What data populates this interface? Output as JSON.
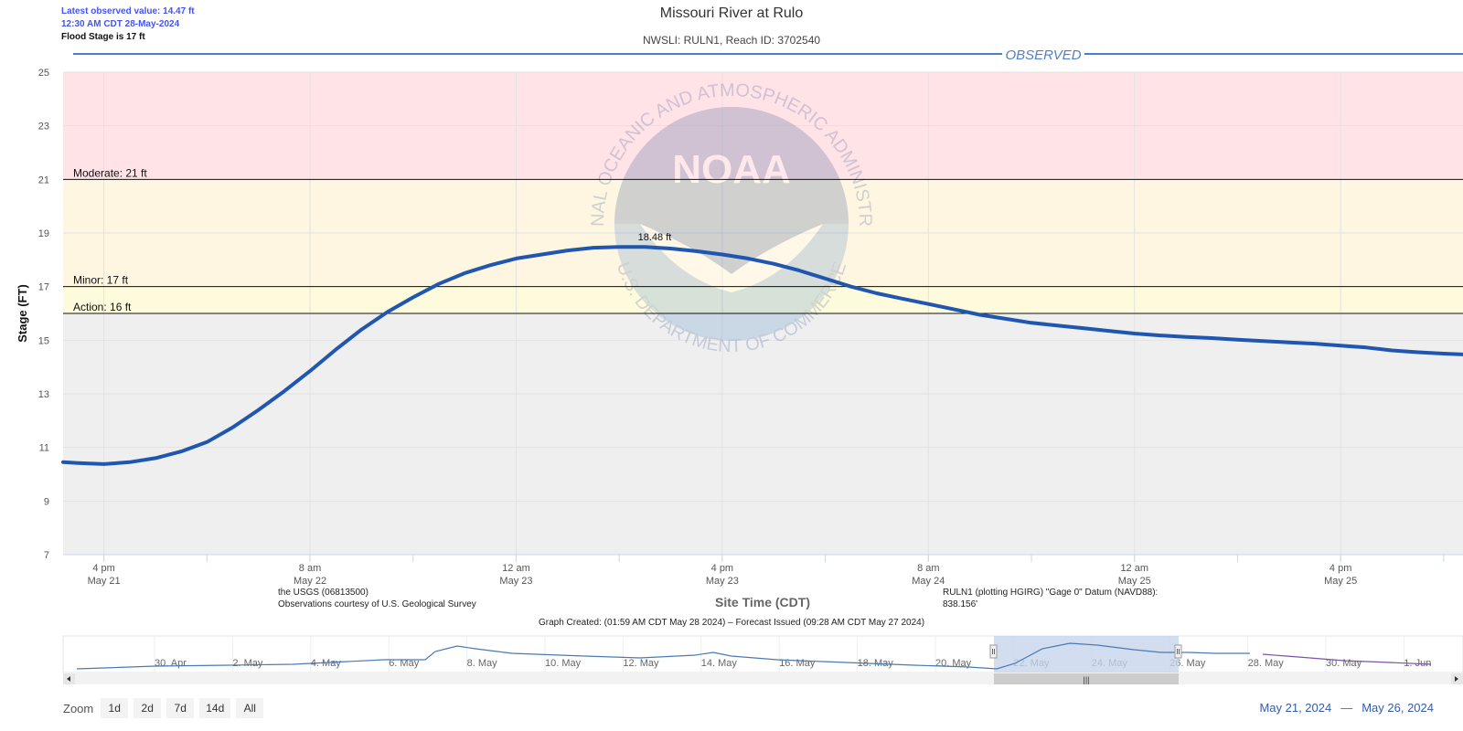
{
  "latest": {
    "observed_value": "Latest observed value: 14.47 ft",
    "observed_time": "12:30 AM CDT 28-May-2024",
    "flood_stage": "Flood Stage is 17 ft"
  },
  "colors": {
    "moderate_band": "#ffe3e6",
    "minor_band": "#fff6e1",
    "action_band": "#fefbdd",
    "normal_band": "#efefef",
    "observed_line": "#1f56b0",
    "observed_label": "#4d7fc9",
    "navigator_line": "#4a7ab5",
    "navigator_forecast": "#7c53a8",
    "navigator_mask": "#c8d4ec",
    "date_range": "#335cad"
  },
  "chart_data": {
    "type": "line",
    "title": "Missouri River at Rulo",
    "subtitle": "NWSLI: RULN1, Reach ID: 3702540",
    "ylabel": "Stage (FT)",
    "xlabel": "Site Time (CDT)",
    "ylim": [
      7,
      25
    ],
    "yticks": [
      7,
      9,
      11,
      13,
      15,
      17,
      19,
      21,
      23,
      25
    ],
    "xlim": [
      "2024-05-21 12:50",
      "2024-05-26 01:30"
    ],
    "xticks": [
      {
        "t": "2024-05-21 16:00",
        "line1": "4 pm",
        "line2": "May 21"
      },
      {
        "t": "2024-05-22 08:00",
        "line1": "8 am",
        "line2": "May 22"
      },
      {
        "t": "2024-05-23 00:00",
        "line1": "12 am",
        "line2": "May 23"
      },
      {
        "t": "2024-05-23 16:00",
        "line1": "4 pm",
        "line2": "May 23"
      },
      {
        "t": "2024-05-24 08:00",
        "line1": "8 am",
        "line2": "May 24"
      },
      {
        "t": "2024-05-25 00:00",
        "line1": "12 am",
        "line2": "May 25"
      },
      {
        "t": "2024-05-25 16:00",
        "line1": "4 pm",
        "line2": "May 25"
      }
    ],
    "thresholds": [
      {
        "label": "Moderate: 21 ft",
        "value": 21
      },
      {
        "label": "Minor: 17 ft",
        "value": 17
      },
      {
        "label": "Action: 16 ft",
        "value": 16
      }
    ],
    "series": [
      {
        "name": "OBSERVED",
        "points": [
          [
            "2024-05-21 12:50",
            10.45
          ],
          [
            "2024-05-21 14:00",
            10.42
          ],
          [
            "2024-05-21 16:00",
            10.38
          ],
          [
            "2024-05-21 18:00",
            10.45
          ],
          [
            "2024-05-21 20:00",
            10.6
          ],
          [
            "2024-05-21 22:00",
            10.85
          ],
          [
            "2024-05-22 00:00",
            11.2
          ],
          [
            "2024-05-22 02:00",
            11.75
          ],
          [
            "2024-05-22 04:00",
            12.4
          ],
          [
            "2024-05-22 06:00",
            13.1
          ],
          [
            "2024-05-22 08:00",
            13.85
          ],
          [
            "2024-05-22 10:00",
            14.65
          ],
          [
            "2024-05-22 12:00",
            15.4
          ],
          [
            "2024-05-22 14:00",
            16.05
          ],
          [
            "2024-05-22 16:00",
            16.6
          ],
          [
            "2024-05-22 18:00",
            17.1
          ],
          [
            "2024-05-22 20:00",
            17.5
          ],
          [
            "2024-05-22 22:00",
            17.8
          ],
          [
            "2024-05-23 00:00",
            18.05
          ],
          [
            "2024-05-23 02:00",
            18.2
          ],
          [
            "2024-05-23 04:00",
            18.35
          ],
          [
            "2024-05-23 06:00",
            18.45
          ],
          [
            "2024-05-23 08:00",
            18.48
          ],
          [
            "2024-05-23 10:00",
            18.48
          ],
          [
            "2024-05-23 12:00",
            18.42
          ],
          [
            "2024-05-23 14:00",
            18.32
          ],
          [
            "2024-05-23 16:00",
            18.2
          ],
          [
            "2024-05-23 18:00",
            18.05
          ],
          [
            "2024-05-23 20:00",
            17.85
          ],
          [
            "2024-05-23 22:00",
            17.6
          ],
          [
            "2024-05-24 00:00",
            17.3
          ],
          [
            "2024-05-24 02:00",
            17.0
          ],
          [
            "2024-05-24 04:00",
            16.75
          ],
          [
            "2024-05-24 06:00",
            16.55
          ],
          [
            "2024-05-24 08:00",
            16.35
          ],
          [
            "2024-05-24 10:00",
            16.15
          ],
          [
            "2024-05-24 12:00",
            15.95
          ],
          [
            "2024-05-24 14:00",
            15.8
          ],
          [
            "2024-05-24 16:00",
            15.65
          ],
          [
            "2024-05-24 18:00",
            15.55
          ],
          [
            "2024-05-24 20:00",
            15.45
          ],
          [
            "2024-05-24 22:00",
            15.35
          ],
          [
            "2024-05-25 00:00",
            15.25
          ],
          [
            "2024-05-25 02:00",
            15.18
          ],
          [
            "2024-05-25 04:00",
            15.12
          ],
          [
            "2024-05-25 06:00",
            15.08
          ],
          [
            "2024-05-25 08:00",
            15.02
          ],
          [
            "2024-05-25 10:00",
            14.97
          ],
          [
            "2024-05-25 12:00",
            14.92
          ],
          [
            "2024-05-25 14:00",
            14.87
          ],
          [
            "2024-05-25 16:00",
            14.8
          ],
          [
            "2024-05-25 18:00",
            14.73
          ],
          [
            "2024-05-25 20:00",
            14.62
          ],
          [
            "2024-05-25 22:00",
            14.55
          ],
          [
            "2024-05-26 00:00",
            14.5
          ],
          [
            "2024-05-26 01:30",
            14.47
          ]
        ]
      }
    ],
    "peak_label": "18.48 ft",
    "peak_point": [
      "2024-05-23 09:00",
      18.48
    ]
  },
  "footer": {
    "usgs_line1": "the USGS (06813500)",
    "usgs_line2": "Observations courtesy of U.S. Geological Survey",
    "datum_line1": "RULN1 (plotting HGIRG) \"Gage 0\" Datum (NAVD88):",
    "datum_line2": "838.156'",
    "graph_created": "Graph Created: (01:59 AM CDT May 28 2024) – Forecast Issued (09:28 AM CDT May 27 2024)"
  },
  "watermark": {
    "ring_text": "NATIONAL OCEANIC AND ATMOSPHERIC ADMINISTRATION",
    "ring_text_bottom": "U.S. DEPARTMENT OF COMMERCE",
    "logo_text": "NOAA"
  },
  "navigator": {
    "labels": [
      "30. Apr",
      "2. May",
      "4. May",
      "6. May",
      "8. May",
      "10. May",
      "12. May",
      "14. May",
      "16. May",
      "18. May",
      "20. May",
      "22. May",
      "24. May",
      "26. May",
      "28. May",
      "30. May",
      "1. Jun"
    ],
    "scrollbar_grip": "|||"
  },
  "zoom": {
    "label": "Zoom",
    "buttons": [
      "1d",
      "2d",
      "7d",
      "14d",
      "All"
    ]
  },
  "range": {
    "from": "May 21, 2024",
    "sep": "—",
    "to": "May 26, 2024"
  }
}
